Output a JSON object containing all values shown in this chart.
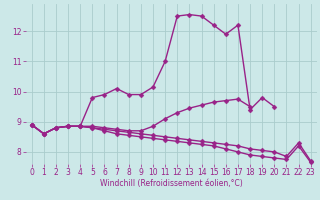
{
  "xlabel": "Windchill (Refroidissement éolien,°C)",
  "x": [
    0,
    1,
    2,
    3,
    4,
    5,
    6,
    7,
    8,
    9,
    10,
    11,
    12,
    13,
    14,
    15,
    16,
    17,
    18,
    19,
    20,
    21,
    22,
    23
  ],
  "series1": [
    8.9,
    8.6,
    8.8,
    8.85,
    8.85,
    9.8,
    9.9,
    10.1,
    9.9,
    9.9,
    10.15,
    11.0,
    12.5,
    12.55,
    12.5,
    12.2,
    11.9,
    12.2,
    9.4,
    9.8,
    9.5,
    null,
    null,
    null
  ],
  "series2": [
    8.9,
    8.6,
    8.8,
    8.85,
    8.85,
    8.85,
    8.8,
    8.75,
    8.7,
    8.7,
    8.85,
    9.1,
    9.3,
    9.45,
    9.55,
    9.65,
    9.7,
    9.75,
    9.5,
    null,
    null,
    null,
    null,
    null
  ],
  "series3": [
    8.9,
    8.6,
    8.8,
    8.85,
    8.85,
    8.8,
    8.75,
    8.7,
    8.65,
    8.6,
    8.55,
    8.5,
    8.45,
    8.4,
    8.35,
    8.3,
    8.25,
    8.2,
    8.1,
    8.05,
    8.0,
    7.85,
    8.3,
    7.7
  ],
  "series4": [
    8.9,
    8.6,
    8.8,
    8.85,
    8.85,
    8.8,
    8.7,
    8.6,
    8.55,
    8.5,
    8.45,
    8.4,
    8.35,
    8.3,
    8.25,
    8.2,
    8.1,
    8.0,
    7.9,
    7.85,
    7.8,
    7.75,
    8.2,
    7.65
  ],
  "line_color": "#992288",
  "bg_color": "#cce8e8",
  "grid_color": "#aacccc",
  "ylim": [
    7.6,
    12.9
  ],
  "xlim": [
    -0.5,
    23.5
  ],
  "yticks": [
    8,
    9,
    10,
    11,
    12
  ],
  "xticks": [
    0,
    1,
    2,
    3,
    4,
    5,
    6,
    7,
    8,
    9,
    10,
    11,
    12,
    13,
    14,
    15,
    16,
    17,
    18,
    19,
    20,
    21,
    22,
    23
  ],
  "markersize": 2.5,
  "linewidth": 1.0,
  "tick_fontsize": 5.5,
  "label_fontsize": 5.5
}
